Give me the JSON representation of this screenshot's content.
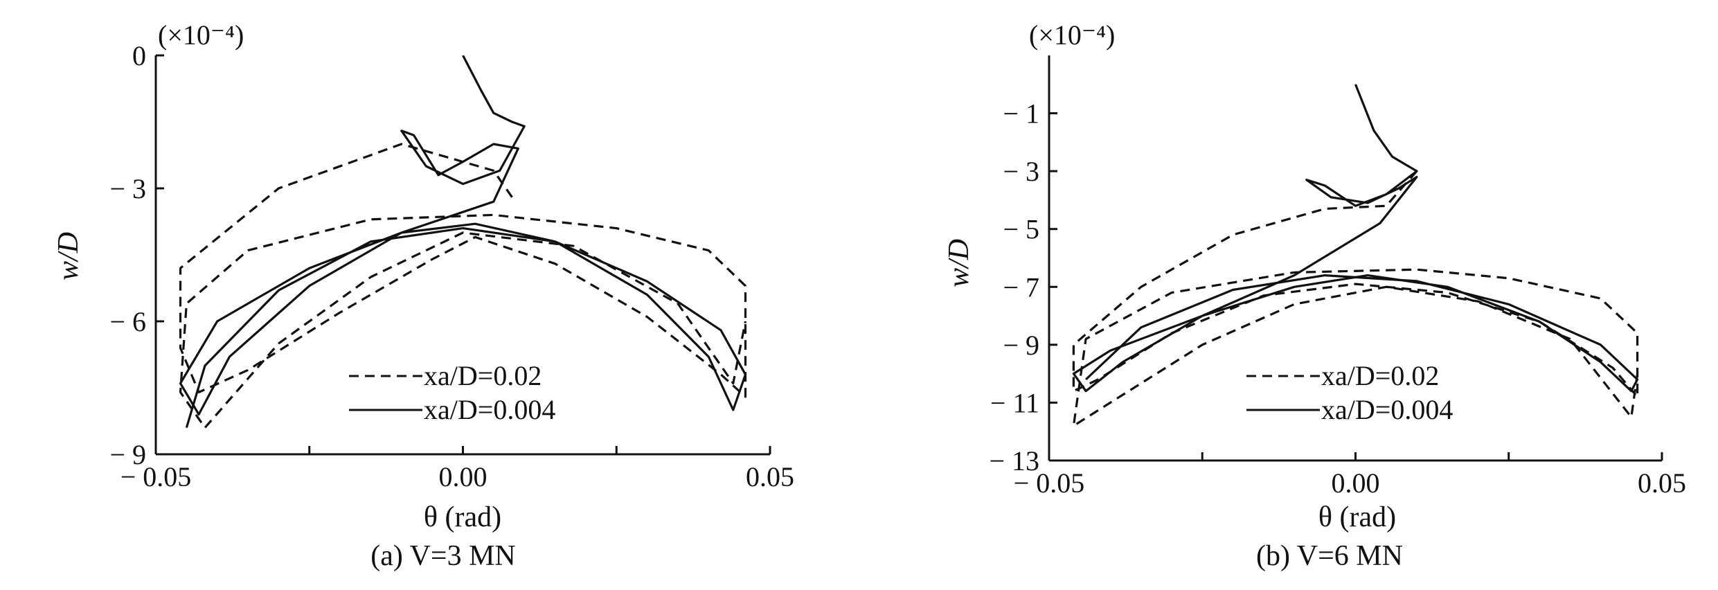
{
  "chart_data": [
    {
      "type": "line",
      "caption": "(a) V=3 MN",
      "multiplier": "(×10⁻⁴)",
      "xlabel": "θ (rad)",
      "ylabel": "w/D",
      "xlim": [
        -0.05,
        0.05
      ],
      "ylim": [
        -9,
        0
      ],
      "xticks": [
        -0.05,
        0.0,
        0.05
      ],
      "xtick_labels": [
        "− 0.05",
        "0.00",
        "0.05"
      ],
      "yticks": [
        0,
        -3,
        -6,
        -9
      ],
      "ytick_labels": [
        "0",
        "− 3",
        "− 6",
        "− 9"
      ],
      "legend_position": "lower-center",
      "series": [
        {
          "name": "xa/D=0.02",
          "style": "dashed",
          "color": "#111111",
          "x": [
            0.008,
            0.005,
            -0.01,
            -0.03,
            -0.046,
            -0.046,
            -0.043,
            -0.035,
            -0.02,
            -0.005,
            0.002,
            0.015,
            0.03,
            0.042,
            0.046,
            0.046,
            0.04,
            0.025,
            0.005,
            -0.015,
            -0.035,
            -0.045,
            -0.046,
            -0.042,
            -0.03,
            -0.015,
            0.0,
            0.018,
            0.035,
            0.044,
            0.046
          ],
          "y": [
            -3.2,
            -2.6,
            -2.0,
            -3.0,
            -4.8,
            -6.6,
            -7.6,
            -7.1,
            -5.8,
            -4.6,
            -4.1,
            -4.7,
            -5.9,
            -7.2,
            -7.7,
            -5.2,
            -4.4,
            -3.9,
            -3.6,
            -3.7,
            -4.4,
            -5.6,
            -7.6,
            -8.4,
            -6.5,
            -5.0,
            -4.0,
            -4.3,
            -5.6,
            -7.4,
            -6.0
          ]
        },
        {
          "name": "xa/D=0.004",
          "style": "solid",
          "color": "#111111",
          "x": [
            0.0,
            0.003,
            0.005,
            0.008,
            0.01,
            0.006,
            0.0,
            -0.006,
            -0.01,
            -0.008,
            -0.004,
            0.0,
            0.005,
            0.009,
            0.005,
            -0.01,
            -0.025,
            -0.038,
            -0.043,
            -0.046,
            -0.04,
            -0.025,
            -0.01,
            0.002,
            0.015,
            0.03,
            0.04,
            0.044,
            0.046,
            0.042,
            0.03,
            0.015,
            0.0,
            -0.015,
            -0.03,
            -0.042,
            -0.045
          ],
          "y": [
            0.0,
            -0.8,
            -1.3,
            -1.5,
            -1.6,
            -2.6,
            -2.9,
            -2.5,
            -1.7,
            -1.8,
            -2.7,
            -2.4,
            -2.0,
            -2.1,
            -3.3,
            -4.0,
            -5.2,
            -6.8,
            -8.1,
            -7.4,
            -6.0,
            -4.8,
            -4.0,
            -3.8,
            -4.2,
            -5.4,
            -6.8,
            -8.0,
            -7.2,
            -6.2,
            -5.1,
            -4.2,
            -3.9,
            -4.2,
            -5.3,
            -7.0,
            -8.4
          ]
        }
      ]
    },
    {
      "type": "line",
      "caption": "(b) V=6 MN",
      "multiplier": "(×10⁻⁴)",
      "xlabel": "θ (rad)",
      "ylabel": "w/D",
      "xlim": [
        -0.05,
        0.05
      ],
      "ylim": [
        -13,
        1
      ],
      "xticks": [
        -0.05,
        0.0,
        0.05
      ],
      "xtick_labels": [
        "− 0.05",
        "0.00",
        "0.05"
      ],
      "yticks": [
        -1,
        -3,
        -5,
        -7,
        -9,
        -11,
        -13
      ],
      "ytick_labels": [
        "− 1",
        "− 3",
        "− 5",
        "− 7",
        "− 9",
        "− 11",
        "− 13"
      ],
      "legend_position": "lower-center",
      "series": [
        {
          "name": "xa/D=0.02",
          "style": "dashed",
          "color": "#111111",
          "x": [
            0.01,
            0.005,
            -0.005,
            -0.02,
            -0.035,
            -0.046,
            -0.046,
            -0.042,
            -0.03,
            -0.015,
            0.0,
            0.015,
            0.03,
            0.042,
            0.046,
            0.046,
            0.04,
            0.025,
            0.01,
            -0.01,
            -0.03,
            -0.044,
            -0.046,
            -0.04,
            -0.025,
            -0.01,
            0.005,
            0.02,
            0.035,
            0.045,
            0.046
          ],
          "y": [
            -3.0,
            -4.2,
            -4.3,
            -5.2,
            -7.0,
            -9.0,
            -10.6,
            -10.2,
            -8.6,
            -7.3,
            -6.9,
            -7.2,
            -8.2,
            -9.8,
            -10.8,
            -8.6,
            -7.4,
            -6.7,
            -6.4,
            -6.5,
            -7.2,
            -8.8,
            -11.8,
            -11.0,
            -9.0,
            -7.6,
            -7.0,
            -7.5,
            -8.8,
            -11.5,
            -10.0
          ]
        },
        {
          "name": "xa/D=0.004",
          "style": "solid",
          "color": "#111111",
          "x": [
            0.0,
            0.003,
            0.006,
            0.01,
            0.005,
            0.0,
            -0.005,
            -0.008,
            -0.004,
            0.002,
            0.007,
            0.01,
            0.004,
            -0.01,
            -0.025,
            -0.038,
            -0.044,
            -0.046,
            -0.04,
            -0.025,
            -0.01,
            0.002,
            0.015,
            0.03,
            0.04,
            0.045,
            0.046,
            0.04,
            0.025,
            0.01,
            -0.005,
            -0.02,
            -0.035,
            -0.044
          ],
          "y": [
            0.0,
            -1.6,
            -2.5,
            -3.0,
            -3.8,
            -4.2,
            -3.5,
            -3.3,
            -3.9,
            -4.1,
            -3.6,
            -3.2,
            -4.8,
            -6.6,
            -8.0,
            -9.6,
            -10.6,
            -10.0,
            -9.2,
            -8.0,
            -7.0,
            -6.6,
            -7.0,
            -8.2,
            -9.6,
            -10.6,
            -10.2,
            -9.0,
            -7.6,
            -6.8,
            -6.6,
            -7.1,
            -8.4,
            -10.2
          ]
        }
      ]
    }
  ]
}
